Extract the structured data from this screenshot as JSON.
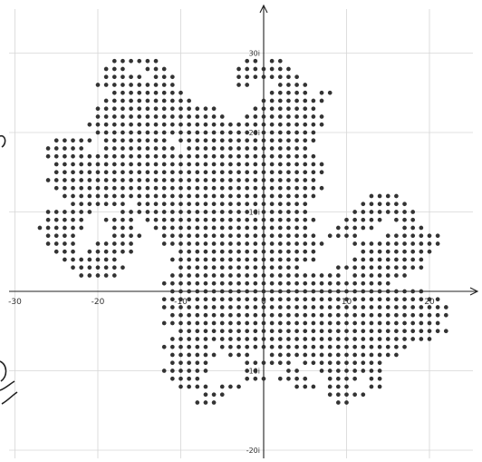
{
  "chart_data": {
    "type": "scatter",
    "title": "",
    "xlabel": "",
    "ylabel": "",
    "xlim": [
      -31,
      26
    ],
    "ylim": [
      -22,
      35
    ],
    "grid": true,
    "legend": "none",
    "x_ticks": [
      {
        "value": -30,
        "label": "-30"
      },
      {
        "value": -20,
        "label": "-20"
      },
      {
        "value": -10,
        "label": "-10"
      },
      {
        "value": 0,
        "label": "0"
      },
      {
        "value": 10,
        "label": "10"
      },
      {
        "value": 20,
        "label": "20"
      }
    ],
    "y_ticks": [
      {
        "value": 30,
        "label": "30i"
      },
      {
        "value": 20,
        "label": "20i"
      },
      {
        "value": 10,
        "label": "10i"
      },
      {
        "value": -10,
        "label": "-10i"
      },
      {
        "value": -20,
        "label": "-20i"
      }
    ],
    "series": [
      {
        "marker_color": "#333333",
        "description_rows": [
          {
            "y": 29,
            "segments": [
              [
                -18,
                -16
              ],
              [
                -15,
                -13
              ],
              [
                -2,
                -1
              ],
              [
                1,
                2
              ]
            ]
          },
          {
            "y": 28,
            "segments": [
              [
                -19,
                -17
              ],
              [
                -14,
                -12
              ],
              [
                -3,
                3
              ]
            ]
          },
          {
            "y": 27,
            "segments": [
              [
                -19,
                -15
              ],
              [
                -13,
                -11
              ],
              [
                -3,
                4
              ]
            ]
          },
          {
            "y": 26,
            "segments": [
              [
                -20,
                -11
              ],
              [
                -3,
                -2
              ],
              [
                2,
                5
              ]
            ]
          },
          {
            "y": 25,
            "segments": [
              [
                -18,
                -10
              ],
              [
                1,
                5
              ],
              [
                7,
                8
              ]
            ]
          },
          {
            "y": 24,
            "segments": [
              [
                -19,
                -9
              ],
              [
                0,
                7
              ]
            ]
          },
          {
            "y": 23,
            "segments": [
              [
                -20,
                -6
              ],
              [
                -1,
                6
              ]
            ]
          },
          {
            "y": 22,
            "segments": [
              [
                -20,
                -5
              ],
              [
                -2,
                7
              ]
            ]
          },
          {
            "y": 21,
            "segments": [
              [
                -21,
                -4
              ],
              [
                -3,
                7
              ]
            ]
          },
          {
            "y": 20,
            "segments": [
              [
                -20,
                6
              ]
            ]
          },
          {
            "y": 19,
            "segments": [
              [
                -25,
                -21
              ],
              [
                -19,
                -12
              ],
              [
                -10,
                6
              ]
            ]
          },
          {
            "y": 18,
            "segments": [
              [
                -26,
                -22
              ],
              [
                -19,
                -11
              ],
              [
                -9,
                5
              ]
            ]
          },
          {
            "y": 17,
            "segments": [
              [
                -26,
                6
              ]
            ]
          },
          {
            "y": 16,
            "segments": [
              [
                -25,
                7
              ]
            ]
          },
          {
            "y": 15,
            "segments": [
              [
                -25,
                7
              ]
            ]
          },
          {
            "y": 14,
            "segments": [
              [
                -26,
                6
              ]
            ]
          },
          {
            "y": 13,
            "segments": [
              [
                -25,
                7
              ]
            ]
          },
          {
            "y": 12,
            "segments": [
              [
                -24,
                6
              ],
              [
                13,
                16
              ]
            ]
          },
          {
            "y": 11,
            "segments": [
              [
                -23,
                -17
              ],
              [
                -15,
                5
              ],
              [
                12,
                17
              ]
            ]
          },
          {
            "y": 10,
            "segments": [
              [
                -26,
                -21
              ],
              [
                -17,
                5
              ],
              [
                11,
                18
              ]
            ]
          },
          {
            "y": 9,
            "segments": [
              [
                -26,
                -22
              ],
              [
                -19,
                -16
              ],
              [
                -14,
                6
              ],
              [
                10,
                14
              ],
              [
                16,
                18
              ]
            ]
          },
          {
            "y": 8,
            "segments": [
              [
                -27,
                -22
              ],
              [
                -18,
                -16
              ],
              [
                -13,
                5
              ],
              [
                9,
                13
              ],
              [
                17,
                19
              ]
            ]
          },
          {
            "y": 7,
            "segments": [
              [
                -26,
                -23
              ],
              [
                -18,
                -15
              ],
              [
                -12,
                6
              ],
              [
                8,
                11
              ],
              [
                15,
                21
              ]
            ]
          },
          {
            "y": 6,
            "segments": [
              [
                -26,
                -23
              ],
              [
                -20,
                -16
              ],
              [
                -12,
                7
              ],
              [
                11,
                21
              ]
            ]
          },
          {
            "y": 5,
            "segments": [
              [
                -25,
                -23
              ],
              [
                -21,
                -16
              ],
              [
                -10,
                6
              ],
              [
                12,
                20
              ]
            ]
          },
          {
            "y": 4,
            "segments": [
              [
                -24,
                -18
              ],
              [
                -11,
                6
              ],
              [
                11,
                19
              ]
            ]
          },
          {
            "y": 3,
            "segments": [
              [
                -23,
                -17
              ],
              [
                -10,
                4
              ],
              [
                9,
                19
              ]
            ]
          },
          {
            "y": 2,
            "segments": [
              [
                -22,
                -18
              ],
              [
                -11,
                9
              ],
              [
                11,
                17
              ]
            ]
          },
          {
            "y": 1,
            "segments": [
              [
                -12,
                15
              ]
            ]
          },
          {
            "y": 0,
            "segments": [
              [
                -11,
                19
              ]
            ]
          },
          {
            "y": -1,
            "segments": [
              [
                -12,
                21
              ]
            ]
          },
          {
            "y": -2,
            "segments": [
              [
                -12,
                22
              ]
            ]
          },
          {
            "y": -3,
            "segments": [
              [
                -11,
                22
              ]
            ]
          },
          {
            "y": -4,
            "segments": [
              [
                -12,
                21
              ]
            ]
          },
          {
            "y": -5,
            "segments": [
              [
                -10,
                22
              ]
            ]
          },
          {
            "y": -6,
            "segments": [
              [
                -11,
                20
              ]
            ]
          },
          {
            "y": -7,
            "segments": [
              [
                -12,
                -7
              ],
              [
                -5,
                17
              ]
            ]
          },
          {
            "y": -8,
            "segments": [
              [
                -11,
                -6
              ],
              [
                -4,
                -2
              ],
              [
                1,
                16
              ]
            ]
          },
          {
            "y": -9,
            "segments": [
              [
                -11,
                -7
              ],
              [
                -2,
                3
              ],
              [
                5,
                14
              ]
            ]
          },
          {
            "y": -10,
            "segments": [
              [
                -12,
                -7
              ],
              [
                -2,
                -1
              ],
              [
                3,
                4
              ],
              [
                7,
                14
              ]
            ]
          },
          {
            "y": -11,
            "segments": [
              [
                -11,
                -8
              ],
              [
                -2,
                0
              ],
              [
                2,
                5
              ],
              [
                8,
                11
              ],
              [
                13,
                14
              ]
            ]
          },
          {
            "y": -12,
            "segments": [
              [
                -10,
                -7
              ],
              [
                -5,
                -3
              ],
              [
                4,
                6
              ],
              [
                8,
                10
              ],
              [
                13,
                14
              ]
            ]
          },
          {
            "y": -13,
            "segments": [
              [
                -7,
                -5
              ],
              [
                8,
                12
              ]
            ]
          },
          {
            "y": -14,
            "segments": [
              [
                -8,
                -6
              ],
              [
                9,
                10
              ]
            ]
          }
        ]
      }
    ]
  }
}
